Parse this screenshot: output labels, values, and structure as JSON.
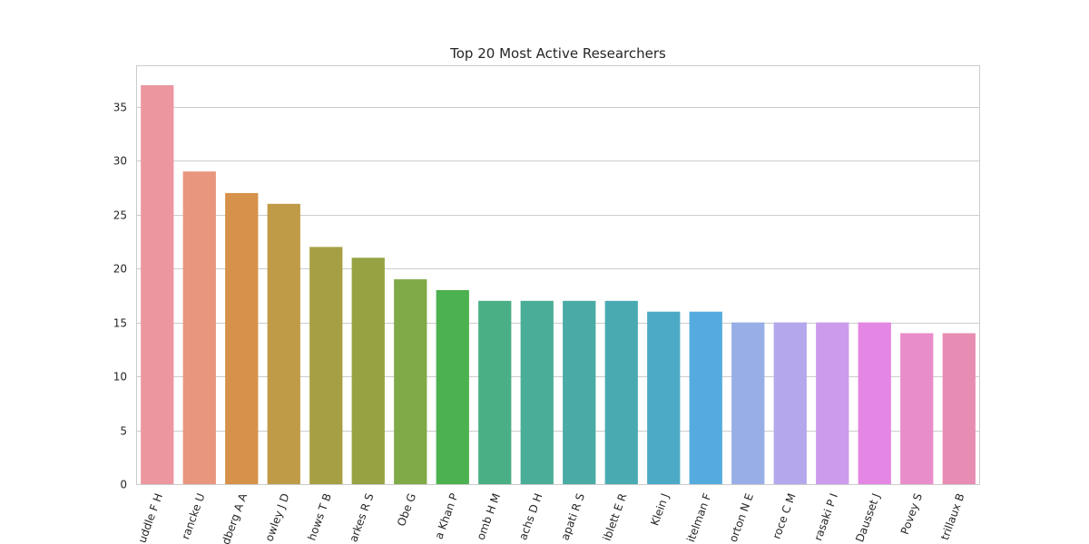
{
  "chart_data": {
    "type": "bar",
    "title": "Top 20 Most Active Researchers",
    "xlabel": "",
    "ylabel": "",
    "categories": [
      "uddle F H",
      "rancke U",
      "dberg A A",
      "owley J D",
      "hows T B",
      "arkes R S",
      "Obe G",
      "a Khan P",
      "omb H M",
      "achs D H",
      "apati R S",
      "iblett E R",
      "Klein J",
      "itelman F",
      "orton N E",
      "roce C M",
      "rasaki P I",
      "Dausset J",
      "Povey S",
      "trillaux B"
    ],
    "values": [
      37,
      29,
      27,
      26,
      22,
      21,
      19,
      18,
      17,
      17,
      17,
      17,
      16,
      16,
      15,
      15,
      15,
      15,
      14,
      14
    ],
    "colors": [
      "#ec97a0",
      "#e8967e",
      "#d6914a",
      "#bf9b48",
      "#a79f43",
      "#97a343",
      "#80aa48",
      "#4cb14f",
      "#4aaf84",
      "#4aad97",
      "#4aaba4",
      "#4aaab2",
      "#4daac6",
      "#55abdd",
      "#97afe6",
      "#b4a7ec",
      "#cd9beb",
      "#e486e4",
      "#e98cca",
      "#e78db4"
    ],
    "y_ticks": [
      0,
      5,
      10,
      15,
      20,
      25,
      30,
      35
    ],
    "ylim": [
      0,
      38.85
    ],
    "grid": "horizontal",
    "legend": "none"
  }
}
